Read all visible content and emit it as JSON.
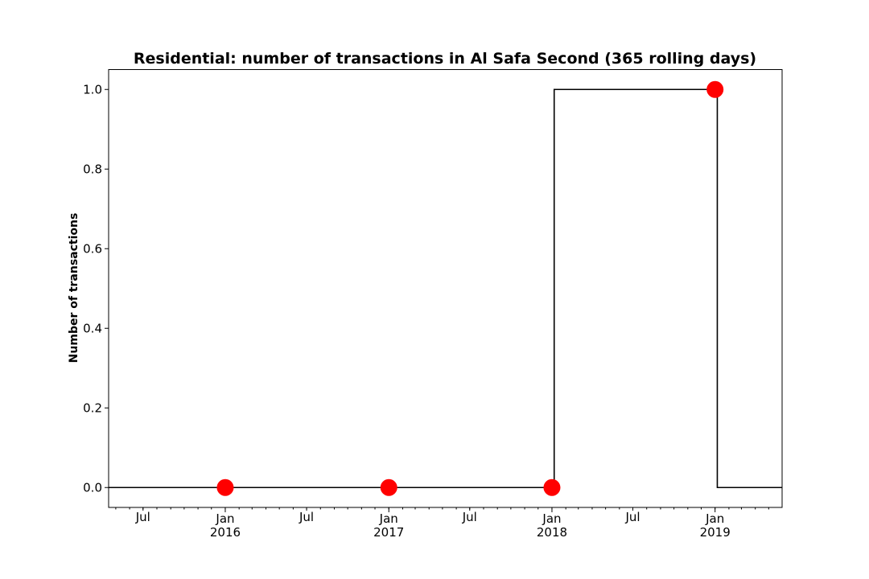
{
  "chart_data": {
    "type": "line",
    "title": "Residential: number of transactions in Al Safa Second (365 rolling days)",
    "xlabel": "",
    "ylabel": "Number of transactions",
    "xlim": [
      "2015-04-15",
      "2019-05-31"
    ],
    "ylim": [
      -0.05,
      1.05
    ],
    "yticks": [
      "0.0",
      "0.2",
      "0.4",
      "0.6",
      "0.8",
      "1.0"
    ],
    "xticks_major": [
      {
        "date": "2016-01-01",
        "label": "Jan",
        "year": "2016"
      },
      {
        "date": "2017-01-01",
        "label": "Jan",
        "year": "2017"
      },
      {
        "date": "2018-01-01",
        "label": "Jan",
        "year": "2018"
      },
      {
        "date": "2019-01-01",
        "label": "Jan",
        "year": "2019"
      }
    ],
    "xticks_minor_labeled": [
      {
        "date": "2015-07-01",
        "label": "Jul"
      },
      {
        "date": "2016-07-01",
        "label": "Jul"
      },
      {
        "date": "2017-07-01",
        "label": "Jul"
      },
      {
        "date": "2018-07-01",
        "label": "Jul"
      }
    ],
    "series": [
      {
        "style": "step",
        "color": "#000000",
        "points": [
          {
            "x": "2015-04-15",
            "y": 0
          },
          {
            "x": "2018-01-06",
            "y": 0
          },
          {
            "x": "2018-01-06",
            "y": 1
          },
          {
            "x": "2019-01-06",
            "y": 1
          },
          {
            "x": "2019-01-06",
            "y": 0
          },
          {
            "x": "2019-05-31",
            "y": 0
          }
        ]
      },
      {
        "style": "markers",
        "color": "#ff0000",
        "points": [
          {
            "x": "2016-01-01",
            "y": 0
          },
          {
            "x": "2017-01-01",
            "y": 0
          },
          {
            "x": "2018-01-01",
            "y": 0
          },
          {
            "x": "2019-01-01",
            "y": 1
          }
        ]
      }
    ],
    "grid": false,
    "legend": "none"
  }
}
